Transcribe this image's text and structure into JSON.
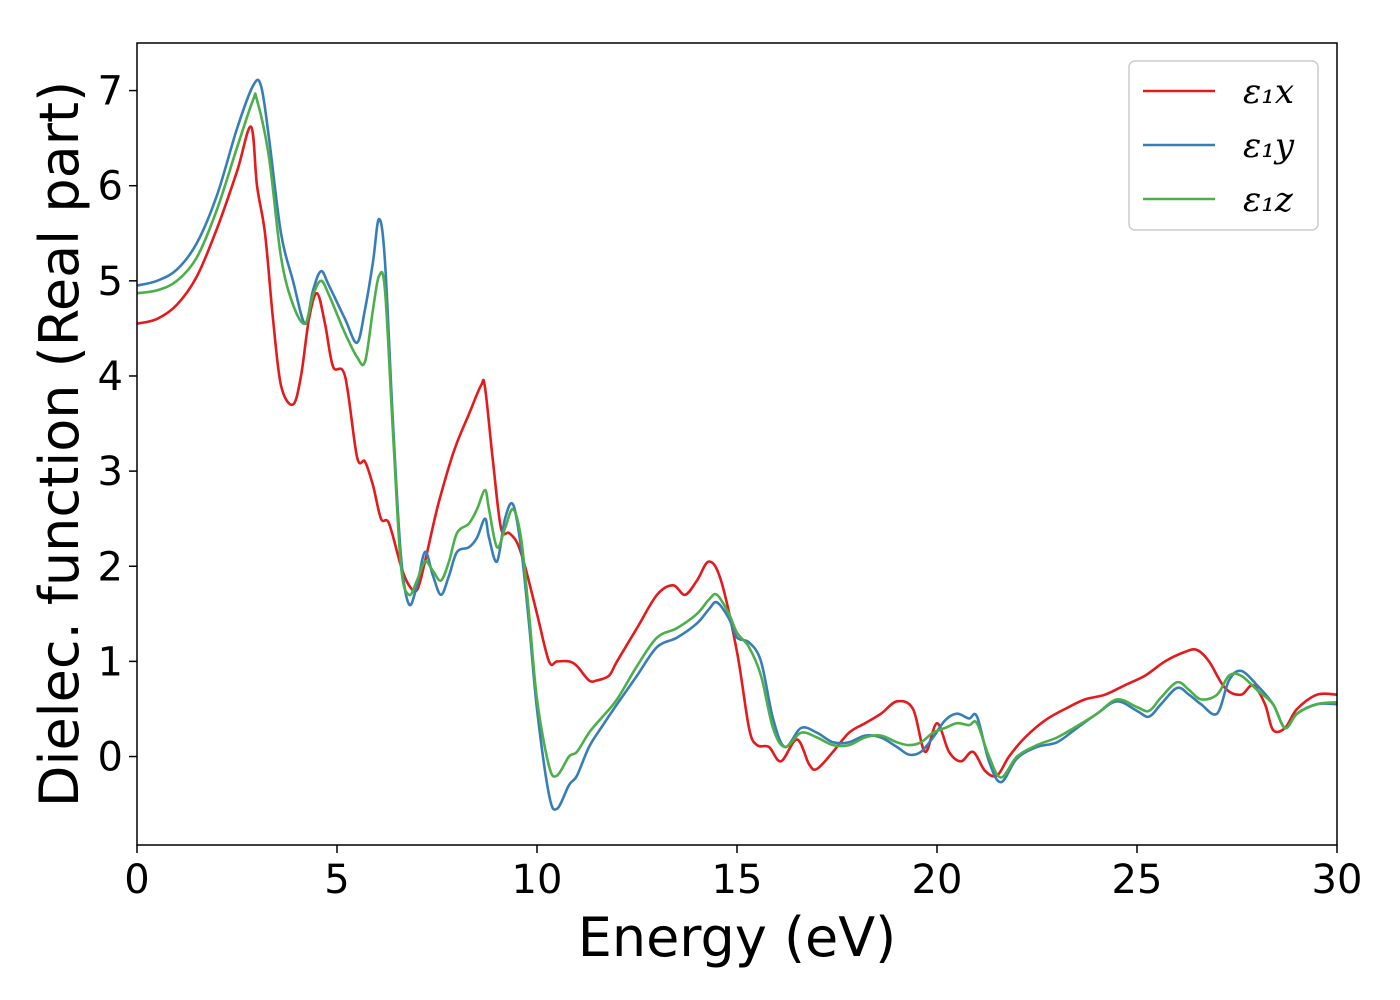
{
  "chart_data": {
    "type": "line",
    "title": "",
    "xlabel": "Energy (eV)",
    "ylabel": "Dielec. function (Real part)",
    "xlim": [
      0,
      30
    ],
    "ylim": [
      -0.93,
      7.5
    ],
    "xticks": [
      0,
      5,
      10,
      15,
      20,
      25,
      30
    ],
    "yticks": [
      0,
      1,
      2,
      3,
      4,
      5,
      6,
      7
    ],
    "grid": false,
    "legend_position": "top-right",
    "series": [
      {
        "name": "ε₁x",
        "color": "#e41a1c",
        "x": [
          0,
          0.5,
          1.0,
          1.5,
          2.0,
          2.5,
          2.85,
          3.0,
          3.2,
          3.4,
          3.6,
          3.9,
          4.1,
          4.3,
          4.5,
          4.7,
          4.9,
          5.2,
          5.5,
          5.7,
          5.9,
          6.1,
          6.3,
          6.6,
          6.8,
          7.0,
          7.2,
          7.5,
          7.8,
          8.0,
          8.3,
          8.6,
          8.7,
          8.9,
          9.1,
          9.3,
          9.5,
          9.7,
          10.0,
          10.3,
          10.5,
          10.8,
          11.0,
          11.3,
          11.5,
          11.8,
          12.0,
          12.5,
          13.0,
          13.4,
          13.7,
          14.0,
          14.3,
          14.6,
          15.0,
          15.3,
          15.5,
          15.8,
          16.1,
          16.5,
          16.8,
          17.0,
          17.4,
          17.8,
          18.2,
          18.6,
          19.0,
          19.4,
          19.7,
          20.0,
          20.3,
          20.6,
          20.9,
          21.2,
          21.5,
          21.8,
          22.2,
          22.7,
          23.2,
          23.7,
          24.2,
          24.7,
          25.2,
          25.7,
          26.2,
          26.5,
          26.8,
          27.2,
          27.6,
          27.9,
          28.2,
          28.4,
          28.7,
          29.0,
          29.5,
          30.0
        ],
        "values": [
          4.55,
          4.6,
          4.75,
          5.05,
          5.55,
          6.15,
          6.62,
          6.0,
          5.5,
          4.6,
          3.9,
          3.7,
          4.0,
          4.6,
          4.87,
          4.55,
          4.1,
          4.0,
          3.15,
          3.1,
          2.85,
          2.5,
          2.45,
          2.0,
          1.8,
          1.75,
          2.05,
          2.6,
          3.05,
          3.3,
          3.6,
          3.9,
          3.88,
          3.1,
          2.4,
          2.35,
          2.25,
          2.0,
          1.5,
          1.0,
          1.0,
          1.0,
          0.95,
          0.8,
          0.8,
          0.85,
          1.0,
          1.35,
          1.7,
          1.8,
          1.7,
          1.85,
          2.05,
          1.85,
          1.1,
          0.3,
          0.12,
          0.1,
          -0.05,
          0.18,
          -0.08,
          -0.13,
          0.05,
          0.25,
          0.35,
          0.45,
          0.58,
          0.5,
          0.05,
          0.35,
          0.05,
          -0.05,
          0.05,
          -0.15,
          -0.2,
          0.0,
          0.2,
          0.38,
          0.5,
          0.6,
          0.65,
          0.75,
          0.85,
          1.0,
          1.1,
          1.12,
          1.0,
          0.72,
          0.65,
          0.75,
          0.55,
          0.28,
          0.3,
          0.5,
          0.65,
          0.65
        ]
      },
      {
        "name": "ε₁y",
        "color": "#377eb8",
        "x": [
          0,
          0.5,
          1.0,
          1.5,
          2.0,
          2.5,
          2.9,
          3.1,
          3.3,
          3.6,
          3.9,
          4.2,
          4.4,
          4.6,
          4.8,
          5.2,
          5.5,
          5.7,
          5.9,
          6.05,
          6.2,
          6.4,
          6.6,
          6.8,
          7.0,
          7.2,
          7.4,
          7.6,
          7.8,
          8.0,
          8.3,
          8.5,
          8.7,
          8.8,
          9.0,
          9.2,
          9.4,
          9.6,
          9.8,
          10.0,
          10.3,
          10.5,
          10.8,
          11.0,
          11.3,
          11.6,
          12.0,
          12.5,
          13.0,
          13.5,
          14.0,
          14.3,
          14.5,
          14.8,
          15.0,
          15.3,
          15.6,
          15.9,
          16.2,
          16.6,
          17.0,
          17.4,
          17.8,
          18.2,
          18.6,
          19.0,
          19.3,
          19.6,
          19.9,
          20.2,
          20.5,
          20.8,
          21.0,
          21.3,
          21.6,
          22.0,
          22.5,
          23.0,
          23.5,
          24.0,
          24.5,
          25.0,
          25.3,
          25.6,
          26.0,
          26.3,
          26.6,
          27.0,
          27.3,
          27.6,
          28.0,
          28.4,
          28.7,
          29.0,
          29.5,
          30.0
        ],
        "values": [
          4.95,
          5.0,
          5.12,
          5.4,
          5.9,
          6.6,
          7.05,
          7.05,
          6.5,
          5.5,
          5.0,
          4.55,
          4.9,
          5.1,
          4.95,
          4.6,
          4.35,
          4.7,
          5.2,
          5.65,
          5.2,
          3.5,
          2.1,
          1.6,
          1.8,
          2.15,
          1.9,
          1.7,
          1.9,
          2.15,
          2.2,
          2.3,
          2.5,
          2.3,
          2.05,
          2.5,
          2.65,
          2.2,
          1.4,
          0.5,
          -0.4,
          -0.55,
          -0.3,
          -0.2,
          0.1,
          0.3,
          0.55,
          0.85,
          1.15,
          1.25,
          1.4,
          1.55,
          1.62,
          1.45,
          1.25,
          1.2,
          1.0,
          0.4,
          0.1,
          0.3,
          0.25,
          0.15,
          0.15,
          0.22,
          0.2,
          0.1,
          0.02,
          0.05,
          0.2,
          0.38,
          0.45,
          0.4,
          0.42,
          -0.05,
          -0.27,
          -0.02,
          0.1,
          0.15,
          0.3,
          0.45,
          0.58,
          0.48,
          0.42,
          0.55,
          0.72,
          0.65,
          0.55,
          0.45,
          0.8,
          0.9,
          0.75,
          0.55,
          0.3,
          0.45,
          0.55,
          0.55
        ]
      },
      {
        "name": "ε₁z",
        "color": "#4daf4a",
        "x": [
          0,
          0.5,
          1.0,
          1.5,
          2.0,
          2.5,
          2.9,
          3.0,
          3.3,
          3.6,
          3.9,
          4.2,
          4.4,
          4.6,
          4.8,
          5.2,
          5.5,
          5.7,
          5.9,
          6.05,
          6.2,
          6.4,
          6.6,
          6.8,
          7.0,
          7.2,
          7.4,
          7.6,
          7.8,
          8.0,
          8.3,
          8.5,
          8.7,
          8.8,
          9.0,
          9.2,
          9.4,
          9.6,
          9.8,
          10.0,
          10.3,
          10.5,
          10.8,
          11.0,
          11.3,
          11.6,
          12.0,
          12.5,
          13.0,
          13.5,
          14.0,
          14.3,
          14.5,
          14.8,
          15.0,
          15.3,
          15.6,
          15.9,
          16.2,
          16.6,
          17.0,
          17.4,
          17.8,
          18.2,
          18.6,
          19.0,
          19.3,
          19.6,
          19.9,
          20.2,
          20.5,
          20.8,
          21.0,
          21.3,
          21.6,
          22.0,
          22.5,
          23.0,
          23.5,
          24.0,
          24.5,
          25.0,
          25.3,
          25.6,
          26.0,
          26.3,
          26.6,
          27.0,
          27.3,
          27.6,
          28.0,
          28.4,
          28.7,
          29.0,
          29.5,
          30.0
        ],
        "values": [
          4.87,
          4.9,
          5.0,
          5.25,
          5.75,
          6.4,
          6.9,
          6.9,
          6.3,
          5.25,
          4.75,
          4.55,
          4.85,
          5.0,
          4.85,
          4.45,
          4.2,
          4.15,
          4.7,
          5.05,
          4.9,
          3.4,
          2.0,
          1.7,
          1.85,
          2.05,
          1.95,
          1.85,
          2.05,
          2.35,
          2.45,
          2.6,
          2.8,
          2.6,
          2.2,
          2.4,
          2.6,
          2.3,
          1.5,
          0.6,
          -0.1,
          -0.2,
          0.0,
          0.05,
          0.25,
          0.4,
          0.6,
          0.95,
          1.25,
          1.35,
          1.5,
          1.65,
          1.7,
          1.5,
          1.3,
          1.15,
          0.85,
          0.3,
          0.1,
          0.25,
          0.2,
          0.12,
          0.12,
          0.2,
          0.22,
          0.15,
          0.12,
          0.15,
          0.25,
          0.3,
          0.35,
          0.33,
          0.35,
          0.0,
          -0.22,
          0.0,
          0.12,
          0.2,
          0.32,
          0.45,
          0.6,
          0.52,
          0.48,
          0.62,
          0.78,
          0.7,
          0.6,
          0.65,
          0.85,
          0.85,
          0.7,
          0.55,
          0.3,
          0.45,
          0.55,
          0.57
        ]
      }
    ]
  }
}
